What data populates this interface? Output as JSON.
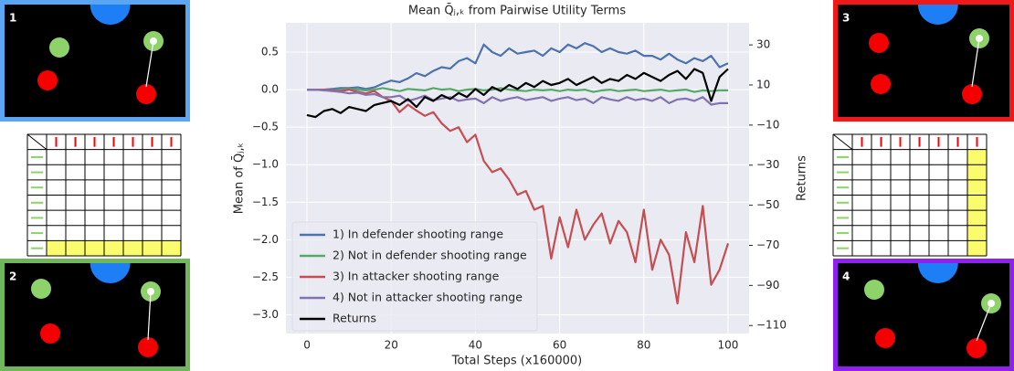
{
  "panel_labels": [
    "1",
    "2",
    "3",
    "4"
  ],
  "chart_data": {
    "type": "line",
    "title": "Mean Q̄ⱼ,ₖ from Pairwise Utility Terms",
    "x_label": "Total Steps (x160000)",
    "y_label": "Mean of Q̄ⱼ,ₖ",
    "y2_label": "Returns",
    "x": [
      0,
      2,
      4,
      6,
      8,
      10,
      12,
      14,
      16,
      18,
      20,
      22,
      24,
      26,
      28,
      30,
      32,
      34,
      36,
      38,
      40,
      42,
      44,
      46,
      48,
      50,
      52,
      54,
      56,
      58,
      60,
      62,
      64,
      66,
      68,
      70,
      72,
      74,
      76,
      78,
      80,
      82,
      84,
      86,
      88,
      90,
      92,
      94,
      96,
      98,
      100
    ],
    "xlim": [
      -5,
      105
    ],
    "xticks": [
      0,
      20,
      40,
      60,
      80,
      100
    ],
    "ylim": [
      -3.25,
      0.89
    ],
    "yticks": [
      {
        "value": 0.5,
        "label": "0.5"
      },
      {
        "value": 0,
        "label": "0.0"
      },
      {
        "value": -0.5,
        "label": "−0.5"
      },
      {
        "value": -1,
        "label": "−1.0"
      },
      {
        "value": -1.5,
        "label": "−1.5"
      },
      {
        "value": -2,
        "label": "−2.0"
      },
      {
        "value": -2.5,
        "label": "−2.5"
      },
      {
        "value": -3,
        "label": "−3.0"
      }
    ],
    "y2lim": [
      -114,
      41
    ],
    "y2ticks": [
      30,
      10,
      {
        "value": -10,
        "label": "−10"
      },
      {
        "value": -30,
        "label": "−30"
      },
      {
        "value": -50,
        "label": "−50"
      },
      {
        "value": -70,
        "label": "−70"
      },
      {
        "value": -90,
        "label": "−90"
      },
      {
        "value": -110,
        "label": "−110"
      }
    ],
    "grid": true,
    "legend": "lower left",
    "series": [
      {
        "name": "1) In defender shooting range",
        "color": "#4c72b0",
        "values": [
          0,
          0,
          0,
          0.01,
          0.02,
          0.02,
          0.03,
          0.01,
          0.03,
          0.08,
          0.12,
          0.1,
          0.15,
          0.22,
          0.18,
          0.25,
          0.3,
          0.28,
          0.38,
          0.42,
          0.35,
          0.6,
          0.5,
          0.45,
          0.55,
          0.48,
          0.5,
          0.52,
          0.45,
          0.55,
          0.5,
          0.6,
          0.55,
          0.62,
          0.58,
          0.5,
          0.55,
          0.5,
          0.48,
          0.52,
          0.45,
          0.45,
          0.4,
          0.48,
          0.4,
          0.35,
          0.42,
          0.38,
          0.45,
          0.3,
          0.35
        ]
      },
      {
        "name": "2) Not in defender shooting range",
        "color": "#55a868",
        "values": [
          0,
          0,
          0,
          -0.01,
          0,
          0.01,
          0,
          -0.01,
          0,
          0.02,
          0,
          -0.02,
          0.01,
          0,
          -0.01,
          0.02,
          0,
          0.01,
          -0.02,
          0,
          0.01,
          -0.01,
          0,
          0.02,
          0,
          -0.01,
          -0.02,
          0,
          -0.01,
          0,
          -0.02,
          0,
          -0.01,
          0,
          -0.03,
          -0.01,
          0,
          -0.02,
          -0.01,
          0,
          -0.02,
          -0.01,
          0,
          -0.02,
          -0.01,
          0,
          -0.03,
          -0.01,
          -0.02,
          -0.01,
          -0.01
        ]
      },
      {
        "name": "3) In attacker shooting range",
        "color": "#c44e52",
        "values": [
          0,
          0,
          0,
          -0.01,
          -0.02,
          0,
          -0.03,
          -0.05,
          -0.02,
          -0.1,
          -0.15,
          -0.3,
          -0.2,
          -0.28,
          -0.35,
          -0.3,
          -0.45,
          -0.55,
          -0.5,
          -0.7,
          -0.6,
          -0.95,
          -1.1,
          -1.05,
          -1.2,
          -1.4,
          -1.35,
          -1.6,
          -1.55,
          -2.25,
          -1.7,
          -2.1,
          -1.6,
          -2.0,
          -1.8,
          -1.65,
          -2.05,
          -1.75,
          -1.9,
          -2.3,
          -1.6,
          -2.4,
          -2.0,
          -2.2,
          -2.85,
          -1.9,
          -2.3,
          -1.55,
          -2.6,
          -2.4,
          -2.05
        ]
      },
      {
        "name": "4) Not in attacker shooting range",
        "color": "#8172b2",
        "values": [
          0,
          0,
          -0.01,
          -0.02,
          -0.03,
          -0.05,
          -0.04,
          -0.07,
          -0.06,
          -0.1,
          -0.1,
          -0.08,
          -0.15,
          -0.12,
          -0.08,
          -0.14,
          -0.12,
          -0.1,
          -0.15,
          -0.13,
          -0.12,
          -0.18,
          -0.1,
          -0.15,
          -0.12,
          -0.1,
          -0.14,
          -0.12,
          -0.1,
          -0.15,
          -0.12,
          -0.1,
          -0.14,
          -0.12,
          -0.18,
          -0.1,
          -0.13,
          -0.15,
          -0.1,
          -0.14,
          -0.12,
          -0.15,
          -0.1,
          -0.18,
          -0.13,
          -0.12,
          -0.15,
          -0.1,
          -0.2,
          -0.18,
          -0.18
        ]
      },
      {
        "name": "Returns",
        "color": "#000000",
        "axis": "y2",
        "values": [
          -5,
          -6,
          -3,
          -2,
          -4,
          -1,
          -2,
          -3,
          0,
          1,
          2,
          0,
          3,
          -1,
          4,
          2,
          5,
          3,
          6,
          4,
          8,
          5,
          9,
          7,
          10,
          8,
          11,
          9,
          12,
          10,
          11,
          13,
          10,
          12,
          14,
          11,
          13,
          12,
          15,
          13,
          16,
          14,
          12,
          15,
          17,
          13,
          18,
          16,
          2,
          14,
          18
        ]
      }
    ]
  }
}
